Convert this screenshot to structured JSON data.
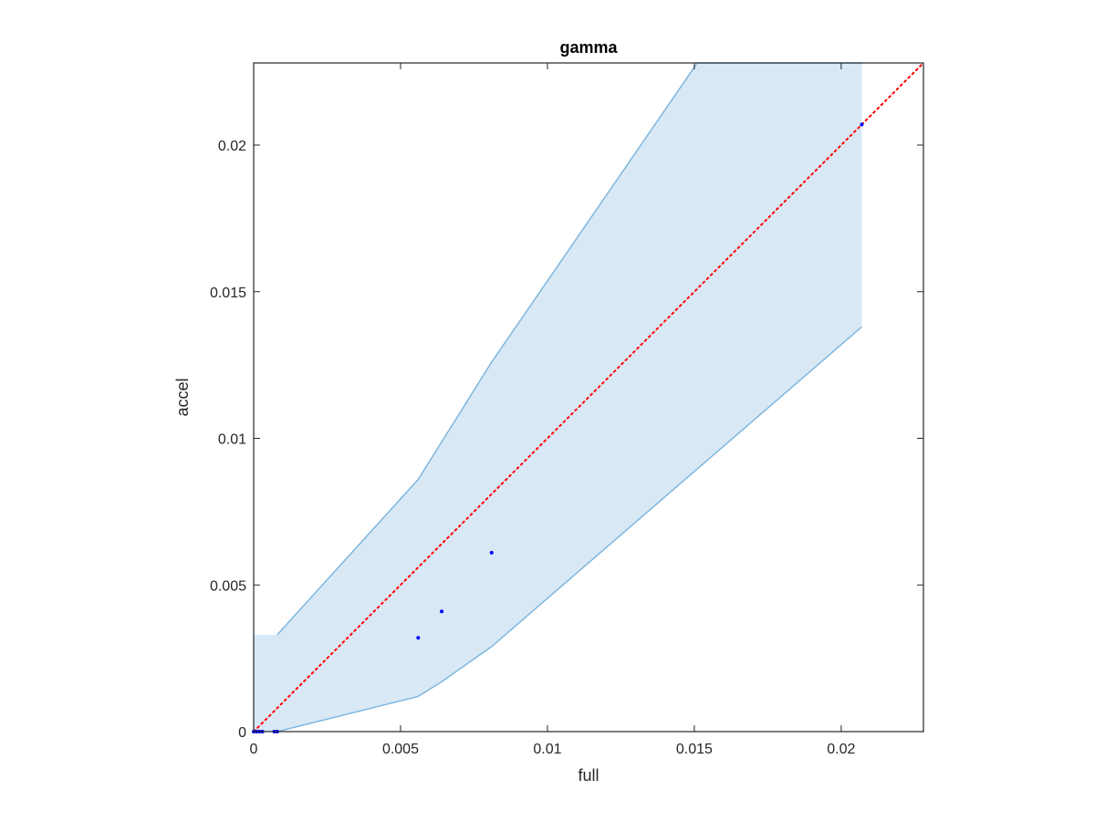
{
  "chart_data": {
    "type": "scatter",
    "title": "gamma",
    "xlabel": "full",
    "ylabel": "accel",
    "xlim": [
      0,
      0.0228
    ],
    "ylim": [
      0,
      0.0228
    ],
    "grid": false,
    "x_ticks": [
      0,
      0.005,
      0.01,
      0.015,
      0.02
    ],
    "x_tick_labels": [
      "0",
      "0.005",
      "0.01",
      "0.015",
      "0.02"
    ],
    "y_ticks": [
      0,
      0.005,
      0.01,
      0.015,
      0.02
    ],
    "y_tick_labels": [
      "0",
      "0.005",
      "0.01",
      "0.015",
      "0.02"
    ],
    "band": {
      "color": "#d9e8f5",
      "edge_color": "#7fb7dd",
      "upper": [
        [
          0,
          0.0033
        ],
        [
          0.0008,
          0.0033
        ],
        [
          0.0056,
          0.0086
        ],
        [
          0.0081,
          0.0126
        ],
        [
          0.0151,
          0.0228
        ],
        [
          0.0207,
          0.0228
        ]
      ],
      "lower": [
        [
          0,
          0
        ],
        [
          0.0008,
          0
        ],
        [
          0.0056,
          0.0012
        ],
        [
          0.0064,
          0.0017
        ],
        [
          0.0081,
          0.0029
        ],
        [
          0.0207,
          0.0138
        ]
      ]
    },
    "points": {
      "color": "#0000ff",
      "x": [
        0,
        0.0001,
        0.0002,
        0.0003,
        0.0007,
        0.0008,
        0.0056,
        0.0064,
        0.0081,
        0.0207
      ],
      "y": [
        0,
        0,
        0,
        0,
        0,
        0,
        0.0032,
        0.0041,
        0.0061,
        0.0207
      ]
    },
    "reference_line": {
      "style": "dotted",
      "color": "#ff0000",
      "x": [
        0,
        0.0228
      ],
      "y": [
        0,
        0.0228
      ]
    }
  }
}
